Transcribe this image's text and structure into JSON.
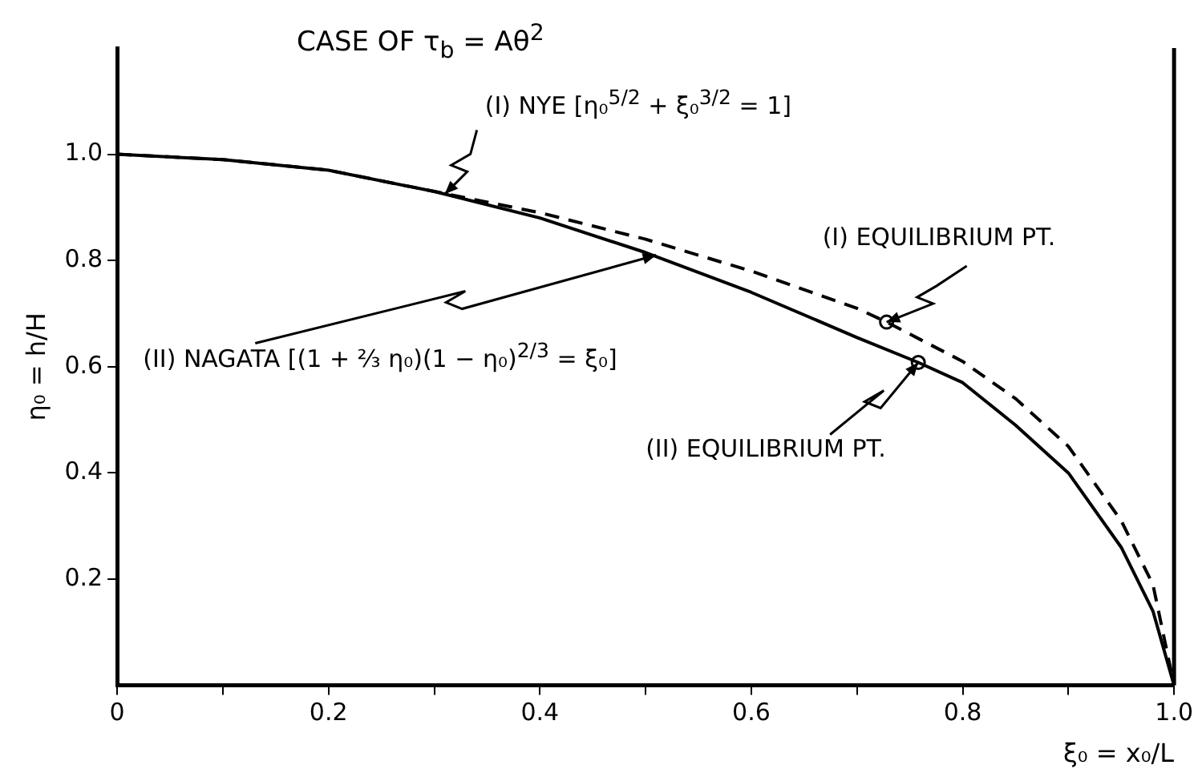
{
  "chart_data": {
    "type": "line",
    "title": "CASE OF τ$_{b}$ = Aθ$^{2}$",
    "xlabel": "ξ₀ = x₀/L",
    "ylabel": "η₀ = h/H",
    "xlim": [
      0,
      1.0
    ],
    "ylim": [
      0,
      1.2
    ],
    "xticks": [
      0,
      {
        "value": 0.1,
        "label": null
      },
      0.2,
      {
        "value": 0.3,
        "label": null
      },
      0.4,
      {
        "value": 0.5,
        "label": null
      },
      0.6,
      {
        "value": 0.7,
        "label": null
      },
      0.8,
      {
        "value": 0.9,
        "label": null
      },
      {
        "value": 1.0,
        "label": "1.0"
      }
    ],
    "yticks": [
      0.2,
      0.4,
      0.6,
      0.8,
      {
        "value": 1.0,
        "label": "1.0"
      }
    ],
    "grid": false,
    "legend": false,
    "series": [
      {
        "color": "#000000",
        "line_style": "dashed",
        "marker": "none",
        "x": [
          0,
          0.1,
          0.2,
          0.3,
          0.4,
          0.5,
          0.6,
          0.7,
          0.728,
          0.8,
          0.85,
          0.9,
          0.95,
          0.98,
          1.0
        ],
        "values": [
          1.0,
          0.99,
          0.97,
          0.93,
          0.89,
          0.84,
          0.78,
          0.71,
          0.684,
          0.61,
          0.54,
          0.45,
          0.31,
          0.19,
          0.0
        ]
      },
      {
        "color": "#000000",
        "line_style": "solid",
        "marker": "none",
        "x": [
          0,
          0.1,
          0.2,
          0.3,
          0.4,
          0.5,
          0.6,
          0.7,
          0.758,
          0.8,
          0.85,
          0.9,
          0.95,
          0.98,
          1.0
        ],
        "values": [
          1.0,
          0.99,
          0.97,
          0.93,
          0.88,
          0.815,
          0.74,
          0.655,
          0.608,
          0.57,
          0.49,
          0.4,
          0.26,
          0.14,
          0.0
        ]
      },
      {
        "type": "scatter",
        "color": "#000000",
        "marker": "circle",
        "x": [
          0.728,
          0.758
        ],
        "values": [
          0.684,
          0.608
        ]
      }
    ],
    "annotations": [
      {
        "text": "(I) NYE   [η₀$^{5/2}$ + ξ₀$^{3/2}$ = 1]",
        "x": 0.31,
        "y": 0.925
      },
      {
        "text": "(II) NAGATA   [(1 + ⅔ η₀)(1 − η₀)$^{2/3}$ = ξ₀]",
        "x": 0.51,
        "y": 0.81
      },
      {
        "text": "(I) EQUILIBRIUM PT.",
        "x": 0.728,
        "y": 0.684
      },
      {
        "text": "(II) EQUILIBRIUM PT.",
        "x": 0.758,
        "y": 0.608
      }
    ]
  }
}
